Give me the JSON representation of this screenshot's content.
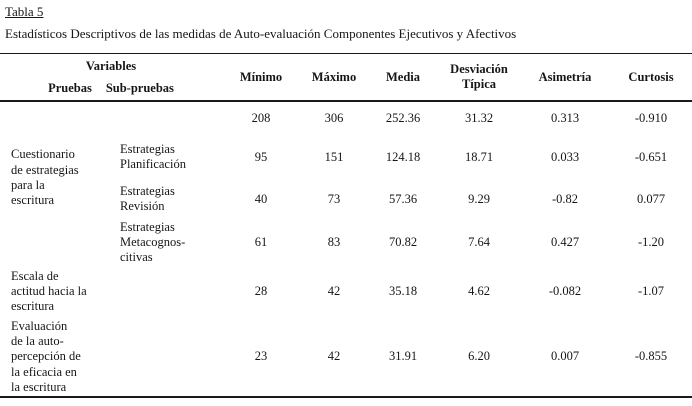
{
  "page": {
    "title": "Tabla 5",
    "subtitle": "Estadísticos Descriptivos de las medidas de Auto-evaluación Componentes Ejecutivos y Afectivos"
  },
  "table": {
    "header": {
      "variables": "Variables",
      "pruebas": "Pruebas",
      "subpruebas": "Sub-pruebas",
      "columns": [
        "Mínimo",
        "Máximo",
        "Media",
        "Desviación\nTípica",
        "Asimetría",
        "Curtosis"
      ]
    },
    "rows": [
      {
        "prueba": "",
        "subprueba": "",
        "values": [
          "208",
          "306",
          "252.36",
          "31.32",
          "0.313",
          "-0.910"
        ]
      },
      {
        "prueba": "Cuestionario\nde estrategias\npara la\nescritura",
        "subprueba": "Estrategias\nPlanificación",
        "values": [
          "95",
          "151",
          "124.18",
          "18.71",
          "0.033",
          "-0.651"
        ]
      },
      {
        "subprueba": "Estrategias\nRevisión",
        "values": [
          "40",
          "73",
          "57.36",
          "9.29",
          "-0.82",
          "0.077"
        ]
      },
      {
        "subprueba": "Estrategias\nMetacognos-\ncitivas",
        "values": [
          "61",
          "83",
          "70.82",
          "7.64",
          "0.427",
          "-1.20"
        ]
      },
      {
        "prueba": "Escala de\nactitud hacia la\nescritura",
        "subprueba": "",
        "values": [
          "28",
          "42",
          "35.18",
          "4.62",
          "-0.082",
          "-1.07"
        ]
      },
      {
        "prueba": "Evaluación\nde la auto-\npercepción de\nla eficacia en\nla escritura",
        "subprueba": "",
        "values": [
          "23",
          "42",
          "31.91",
          "6.20",
          "0.007",
          "-0.855"
        ]
      }
    ]
  }
}
